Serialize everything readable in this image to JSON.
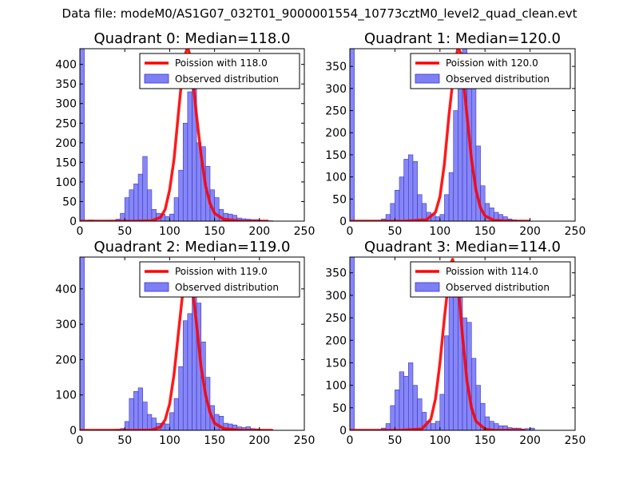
{
  "suptitle": "Data file: modeM0/AS1G07_032T01_9000001554_10773cztM0_level2_quad_clean.evt",
  "colors": {
    "bar_fill": "#7f7ff5",
    "bar_edge": "#3838c8",
    "poisson_line": "#ff0000"
  },
  "chart_data": [
    {
      "type": "bar",
      "title": "Quadrant 0: Median=118.0",
      "xlabel": "",
      "ylabel": "",
      "xlim": [
        0,
        250
      ],
      "ylim": [
        0,
        440
      ],
      "xticks": [
        "0",
        "50",
        "100",
        "150",
        "200",
        "250"
      ],
      "yticks": [
        "0",
        "50",
        "100",
        "150",
        "200",
        "250",
        "300",
        "350",
        "400"
      ],
      "legend": {
        "location": "upper right",
        "entries": [
          "Poission with 118.0",
          "Observed distribution"
        ]
      },
      "bin_width": 5,
      "histogram": {
        "name": "Observed distribution",
        "bin_start": [
          0,
          5,
          10,
          15,
          20,
          25,
          30,
          35,
          40,
          45,
          50,
          55,
          60,
          65,
          70,
          75,
          80,
          85,
          90,
          95,
          100,
          105,
          110,
          115,
          120,
          125,
          130,
          135,
          140,
          145,
          150,
          155,
          160,
          165,
          170,
          175,
          180,
          185,
          190,
          195,
          200,
          205,
          210,
          215,
          220,
          225,
          230,
          235,
          240,
          245
        ],
        "counts": [
          440,
          2,
          3,
          2,
          1,
          1,
          2,
          2,
          5,
          20,
          60,
          80,
          95,
          120,
          165,
          80,
          30,
          20,
          18,
          12,
          18,
          60,
          130,
          250,
          330,
          380,
          200,
          190,
          140,
          80,
          60,
          30,
          20,
          18,
          15,
          8,
          6,
          5,
          4,
          4,
          2,
          2,
          1,
          0,
          0,
          0,
          0,
          0,
          0,
          0
        ]
      },
      "poisson": {
        "name": "Poission with 118.0",
        "x": [
          0,
          60,
          80,
          90,
          95,
          100,
          105,
          110,
          113,
          115,
          118,
          120,
          123,
          125,
          130,
          135,
          140,
          145,
          150,
          160,
          180,
          210
        ],
        "y": [
          0,
          0,
          1,
          10,
          30,
          80,
          160,
          280,
          350,
          390,
          430,
          445,
          420,
          380,
          270,
          170,
          90,
          45,
          20,
          5,
          0,
          0
        ]
      }
    },
    {
      "type": "bar",
      "title": "Quadrant 1: Median=120.0",
      "xlabel": "",
      "ylabel": "",
      "xlim": [
        0,
        250
      ],
      "ylim": [
        0,
        390
      ],
      "xticks": [
        "0",
        "50",
        "100",
        "150",
        "200",
        "250"
      ],
      "yticks": [
        "0",
        "50",
        "100",
        "150",
        "200",
        "250",
        "300",
        "350"
      ],
      "legend": {
        "location": "upper right",
        "entries": [
          "Poission with 120.0",
          "Observed distribution"
        ]
      },
      "bin_width": 5,
      "histogram": {
        "name": "Observed distribution",
        "bin_start": [
          0,
          5,
          10,
          15,
          20,
          25,
          30,
          35,
          40,
          45,
          50,
          55,
          60,
          65,
          70,
          75,
          80,
          85,
          90,
          95,
          100,
          105,
          110,
          115,
          120,
          125,
          130,
          135,
          140,
          145,
          150,
          155,
          160,
          165,
          170,
          175,
          180,
          185,
          190,
          195,
          200,
          205,
          210,
          215,
          220,
          225,
          230,
          235,
          240,
          245
        ],
        "counts": [
          390,
          1,
          1,
          1,
          1,
          1,
          1,
          5,
          15,
          40,
          70,
          100,
          140,
          150,
          135,
          60,
          40,
          20,
          15,
          10,
          15,
          60,
          110,
          250,
          300,
          390,
          370,
          300,
          170,
          80,
          40,
          30,
          20,
          15,
          10,
          5,
          3,
          2,
          1,
          1,
          0,
          0,
          0,
          0,
          0,
          0,
          0,
          0,
          0,
          0
        ]
      },
      "poisson": {
        "name": "Poission with 120.0",
        "x": [
          0,
          60,
          85,
          95,
          100,
          105,
          110,
          115,
          118,
          120,
          123,
          125,
          130,
          135,
          140,
          145,
          150,
          160,
          180,
          200
        ],
        "y": [
          0,
          0,
          3,
          20,
          55,
          130,
          240,
          330,
          370,
          395,
          380,
          340,
          240,
          140,
          70,
          30,
          12,
          2,
          0,
          0
        ]
      }
    },
    {
      "type": "bar",
      "title": "Quadrant 2: Median=119.0",
      "xlabel": "",
      "ylabel": "",
      "xlim": [
        0,
        250
      ],
      "ylim": [
        0,
        490
      ],
      "xticks": [
        "0",
        "50",
        "100",
        "150",
        "200",
        "250"
      ],
      "yticks": [
        "0",
        "100",
        "200",
        "300",
        "400"
      ],
      "legend": {
        "location": "upper right",
        "entries": [
          "Poission with 119.0",
          "Observed distribution"
        ]
      },
      "bin_width": 5,
      "histogram": {
        "name": "Observed distribution",
        "bin_start": [
          0,
          5,
          10,
          15,
          20,
          25,
          30,
          35,
          40,
          45,
          50,
          55,
          60,
          65,
          70,
          75,
          80,
          85,
          90,
          95,
          100,
          105,
          110,
          115,
          120,
          125,
          130,
          135,
          140,
          145,
          150,
          155,
          160,
          165,
          170,
          175,
          180,
          185,
          190,
          195,
          200,
          205,
          210,
          215,
          220,
          225,
          230,
          235,
          240,
          245
        ],
        "counts": [
          490,
          1,
          1,
          1,
          1,
          1,
          1,
          2,
          3,
          5,
          25,
          90,
          110,
          120,
          80,
          45,
          35,
          20,
          20,
          18,
          50,
          90,
          180,
          310,
          330,
          410,
          360,
          250,
          150,
          70,
          45,
          40,
          20,
          18,
          15,
          10,
          8,
          10,
          5,
          4,
          2,
          1,
          1,
          0,
          0,
          0,
          0,
          0,
          0,
          0
        ]
      },
      "poisson": {
        "name": "Poission with 119.0",
        "x": [
          0,
          60,
          80,
          90,
          95,
          100,
          105,
          110,
          115,
          118,
          120,
          123,
          125,
          130,
          135,
          140,
          145,
          150,
          160,
          180,
          215
        ],
        "y": [
          0,
          0,
          1,
          10,
          30,
          75,
          160,
          280,
          400,
          455,
          470,
          450,
          410,
          300,
          180,
          100,
          50,
          20,
          5,
          0,
          0
        ]
      }
    },
    {
      "type": "bar",
      "title": "Quadrant 3: Median=114.0",
      "xlabel": "",
      "ylabel": "",
      "xlim": [
        0,
        250
      ],
      "ylim": [
        0,
        385
      ],
      "xticks": [
        "0",
        "50",
        "100",
        "150",
        "200",
        "250"
      ],
      "yticks": [
        "0",
        "50",
        "100",
        "150",
        "200",
        "250",
        "300",
        "350"
      ],
      "legend": {
        "location": "upper right",
        "entries": [
          "Poission with 114.0",
          "Observed distribution"
        ]
      },
      "bin_width": 5,
      "histogram": {
        "name": "Observed distribution",
        "bin_start": [
          0,
          5,
          10,
          15,
          20,
          25,
          30,
          35,
          40,
          45,
          50,
          55,
          60,
          65,
          70,
          75,
          80,
          85,
          90,
          95,
          100,
          105,
          110,
          115,
          120,
          125,
          130,
          135,
          140,
          145,
          150,
          155,
          160,
          165,
          170,
          175,
          180,
          185,
          190,
          195,
          200,
          205,
          210,
          215,
          220,
          225,
          230,
          235,
          240,
          245
        ],
        "counts": [
          385,
          1,
          1,
          1,
          1,
          1,
          1,
          5,
          15,
          55,
          90,
          130,
          120,
          150,
          100,
          70,
          40,
          20,
          15,
          20,
          80,
          210,
          330,
          350,
          310,
          250,
          240,
          160,
          100,
          60,
          30,
          20,
          15,
          10,
          10,
          6,
          5,
          5,
          3,
          4,
          5,
          0,
          0,
          0,
          0,
          0,
          0,
          0,
          0,
          0
        ]
      },
      "poisson": {
        "name": "Poission with 114.0",
        "x": [
          0,
          55,
          80,
          90,
          95,
          100,
          105,
          110,
          112,
          114,
          117,
          120,
          125,
          130,
          135,
          140,
          150,
          160,
          180,
          195
        ],
        "y": [
          0,
          0,
          3,
          25,
          70,
          150,
          250,
          340,
          370,
          380,
          360,
          330,
          210,
          110,
          50,
          20,
          3,
          0,
          0,
          0
        ]
      }
    }
  ]
}
